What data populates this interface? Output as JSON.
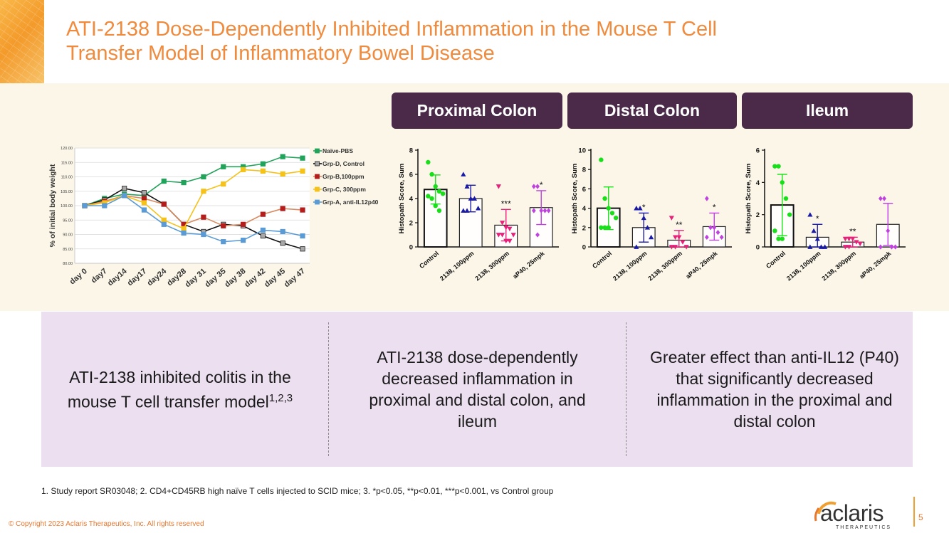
{
  "title": {
    "line1": "ATI-2138 Dose-Dependently Inhibited Inflammation in the Mouse T Cell",
    "line2": "Transfer Model of Inflammatory Bowel Disease"
  },
  "headers": [
    "Proximal Colon",
    "Distal Colon",
    "Ileum"
  ],
  "chart_data": [
    {
      "type": "line",
      "ylabel": "% of initial body weight",
      "ylim": [
        80,
        120
      ],
      "yticks": [
        "80.00",
        "85.00",
        "90.00",
        "95.00",
        "100.00",
        "105.00",
        "110.00",
        "115.00",
        "120.00"
      ],
      "categories": [
        "day 0",
        "day7",
        "day14",
        "day17",
        "day24",
        "day28",
        "day 31",
        "day 35",
        "day 38",
        "day 42",
        "day 45",
        "day 47"
      ],
      "series": [
        {
          "name": "Naïve-PBS",
          "color": "#21a35a",
          "values": [
            100,
            102.5,
            104,
            103.5,
            108.5,
            108,
            110,
            113.5,
            113.5,
            114.5,
            117,
            116.5
          ]
        },
        {
          "name": "Grp-D, Control",
          "color": "#111111",
          "marker": "#a8a8a8",
          "values": [
            100,
            102,
            106,
            104.5,
            100.5,
            93.5,
            91,
            93.5,
            93,
            89.5,
            87,
            85
          ]
        },
        {
          "name": "Grp-B,100ppm",
          "color": "#d98a60",
          "marker": "#b51c1c",
          "values": [
            100,
            101.5,
            103.5,
            102.5,
            100.5,
            93.5,
            96,
            93,
            93.5,
            97,
            99,
            98.5
          ]
        },
        {
          "name": "Grp-C, 300ppm",
          "color": "#f5c21a",
          "marker": "#f5c21a",
          "values": [
            100,
            101,
            103.5,
            101,
            95,
            92,
            105,
            107.5,
            112.5,
            112,
            111,
            112
          ]
        },
        {
          "name": "Grp-A, anti-IL12p40",
          "color": "#5b9bd5",
          "marker": "#5b9bd5",
          "values": [
            100,
            100,
            103.5,
            98.5,
            93.5,
            90.5,
            90,
            87.5,
            88,
            91.5,
            91,
            89.5
          ]
        }
      ]
    },
    {
      "type": "bar",
      "title": "Proximal Colon",
      "ylabel": "Histopath Score, Sum",
      "ylim": [
        0,
        8
      ],
      "yticks": [
        "0",
        "2",
        "4",
        "6",
        "8"
      ],
      "categories": [
        "Control",
        "2138, 100ppm",
        "2138, 300ppm",
        "aP40, 25mpk"
      ],
      "values": [
        4.75,
        4.0,
        1.8,
        3.25
      ],
      "sd": [
        1.2,
        1.1,
        1.3,
        1.4
      ],
      "colors": [
        "#18e018",
        "#1a1aa8",
        "#e8207a",
        "#c040e0"
      ],
      "marker_shapes": [
        "circle",
        "triangle",
        "triangle-down",
        "diamond"
      ],
      "points": [
        [
          7.0,
          6.0,
          5.0,
          4.6,
          4.4,
          4.2,
          4.0,
          3.4,
          3.0
        ],
        [
          6.0,
          5.0,
          4.0,
          4.0,
          3.2,
          3.0,
          3.0
        ],
        [
          5.0,
          2.0,
          1.6,
          1.5,
          1.0,
          1.0,
          1.0,
          0.5,
          0.5
        ],
        [
          5.0,
          5.0,
          3.0,
          3.0,
          3.0,
          3.0,
          1.0
        ]
      ],
      "significance": [
        "",
        "",
        "***",
        "*"
      ]
    },
    {
      "type": "bar",
      "title": "Distal Colon",
      "ylabel": "Histopath Score, Sum",
      "ylim": [
        0,
        10
      ],
      "yticks": [
        "0",
        "2",
        "4",
        "6",
        "8",
        "10"
      ],
      "categories": [
        "Control",
        "2138, 100ppm",
        "2138, 300ppm",
        "aP40, 25mpk"
      ],
      "values": [
        4.0,
        2.0,
        0.7,
        2.1
      ],
      "sd": [
        2.2,
        1.5,
        1.0,
        1.4
      ],
      "colors": [
        "#18e018",
        "#1a1aa8",
        "#e8207a",
        "#c040e0"
      ],
      "marker_shapes": [
        "circle",
        "triangle",
        "triangle-down",
        "diamond"
      ],
      "points": [
        [
          9.0,
          5.0,
          4.0,
          3.5,
          3.0,
          2.0,
          2.0,
          2.0
        ],
        [
          4.0,
          4.0,
          3.0,
          2.0,
          1.0,
          0.0
        ],
        [
          3.0,
          1.0,
          1.0,
          0.5,
          0.0,
          0.0,
          0.0
        ],
        [
          5.0,
          2.0,
          2.0,
          1.5,
          1.0,
          1.0
        ]
      ],
      "significance": [
        "",
        "*",
        "**",
        "*"
      ]
    },
    {
      "type": "bar",
      "title": "Ileum",
      "ylabel": "Histopath Score, Sum",
      "ylim": [
        0,
        6
      ],
      "yticks": [
        "0",
        "2",
        "4",
        "6"
      ],
      "categories": [
        "Control",
        "2138, 100ppm",
        "2138, 300ppm",
        "aP40, 25mpk"
      ],
      "values": [
        2.6,
        0.6,
        0.3,
        1.4
      ],
      "sd": [
        1.9,
        0.8,
        0.3,
        1.3
      ],
      "colors": [
        "#18e018",
        "#1a1aa8",
        "#e8207a",
        "#c040e0"
      ],
      "marker_shapes": [
        "circle",
        "triangle",
        "triangle-down",
        "diamond"
      ],
      "points": [
        [
          5.0,
          5.0,
          4.0,
          3.0,
          2.0,
          1.0,
          0.5,
          0.5
        ],
        [
          2.0,
          1.0,
          0.5,
          0.0,
          0.0,
          0.0
        ],
        [
          0.5,
          0.5,
          0.5,
          0.3,
          0.2,
          0.0,
          0.0
        ],
        [
          3.0,
          3.0,
          1.0,
          0.0,
          0.0,
          0.0
        ]
      ],
      "significance": [
        "",
        "*",
        "**",
        ""
      ]
    }
  ],
  "summary": {
    "col1": "ATI-2138 inhibited colitis in the mouse T cell transfer model",
    "col1_sup": "1,2,3",
    "col2": "ATI-2138 dose-dependently decreased inflammation in proximal and distal colon, and ileum",
    "col3": "Greater effect than anti-IL12 (P40) that significantly decreased inflammation in the proximal and distal colon"
  },
  "footnote": "1. Study report  SR03048; 2. CD4+CD45RB high naïve T cells injected to SCID mice; 3. *p<0.05, **p<0.01, ***p<0.001, vs Control group",
  "copyright": "© Copyright 2023 Aclaris Therapeutics, Inc. All rights reserved",
  "logo": {
    "word": "aclaris",
    "sub": "THERAPEUTICS"
  },
  "page_number": "5"
}
